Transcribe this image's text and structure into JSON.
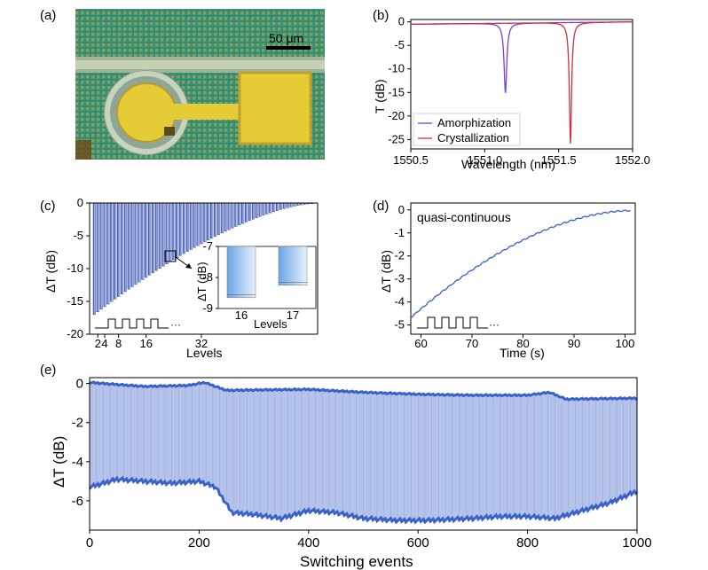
{
  "panels": {
    "a": "(a)",
    "b": "(b)",
    "c": "(c)",
    "d": "(d)",
    "e": "(e)"
  },
  "micrograph": {
    "scale_bar_label": "50 μm",
    "colors": {
      "background": "#2f9a86",
      "gold": "#e9d23a",
      "waveguide": "#b9c9a0"
    }
  },
  "chart_data": [
    {
      "panel": "b",
      "type": "line",
      "xlabel": "Wavelength (nm)",
      "ylabel": "T (dB)",
      "xlim": [
        1550.5,
        1552.0
      ],
      "ylim": [
        -27,
        0.5
      ],
      "xticks": [
        "1550.5",
        "1551.0",
        "1551.5",
        "1552.0"
      ],
      "yticks": [
        "0",
        "-5",
        "-10",
        "-15",
        "-20",
        "-25"
      ],
      "legend_position": "lower-left",
      "series": [
        {
          "name": "Amorphization",
          "color": "#7b3fd4",
          "resonance_nm": 1551.14,
          "min_db": -15.3,
          "baseline_db": -0.5,
          "fwhm_nm": 0.022
        },
        {
          "name": "Crystallization",
          "color": "#c8323c",
          "resonance_nm": 1551.58,
          "min_db": -26.2,
          "baseline_db": -0.5,
          "fwhm_nm": 0.018
        }
      ]
    },
    {
      "panel": "c",
      "type": "bar",
      "xlabel": "Levels",
      "ylabel": "ΔT (dB)",
      "ylim": [
        -20,
        0
      ],
      "xticks": [
        "2",
        "4",
        "8",
        "16",
        "32"
      ],
      "yticks": [
        "0",
        "-5",
        "-10",
        "-15",
        "-20"
      ],
      "levels": 64,
      "first_level_db": -17.0,
      "last_level_db": -0.1,
      "color": "#2f49b8",
      "inset": {
        "xlabel": "Levels",
        "ylabel": "ΔT (dB)",
        "ylim": [
          -9,
          -7
        ],
        "yticks": [
          "-7",
          "-8",
          "-9"
        ],
        "categories": [
          "16",
          "17"
        ],
        "values": [
          -8.65,
          -8.25
        ]
      }
    },
    {
      "panel": "d",
      "type": "line",
      "annotation": "quasi-continuous",
      "xlabel": "Time (s)",
      "ylabel": "ΔT (dB)",
      "xlim": [
        58,
        102
      ],
      "ylim": [
        -5.4,
        0.3
      ],
      "xticks": [
        "60",
        "70",
        "80",
        "90",
        "100"
      ],
      "yticks": [
        "0",
        "-1",
        "-2",
        "-3",
        "-4",
        "-5"
      ],
      "color": "#3a62c9",
      "start": {
        "x": 58,
        "y": -4.7
      },
      "end": {
        "x": 101,
        "y": -0.05
      }
    },
    {
      "panel": "e",
      "type": "scatter",
      "xlabel": "Switching events",
      "ylabel": "ΔT (dB)",
      "xlim": [
        0,
        1000
      ],
      "ylim": [
        -7.5,
        0.3
      ],
      "xticks": [
        "0",
        "200",
        "400",
        "600",
        "800",
        "1000"
      ],
      "yticks": [
        "0",
        "-2",
        "-4",
        "-6"
      ],
      "marker_color": "#3a62c9",
      "fill_color": "#a8b9e6",
      "upper": {
        "x": [
          0,
          100,
          180,
          210,
          250,
          400,
          500,
          600,
          700,
          800,
          840,
          870,
          1000
        ],
        "y": [
          0.05,
          -0.15,
          -0.1,
          0.05,
          -0.35,
          -0.3,
          -0.45,
          -0.55,
          -0.6,
          -0.6,
          -0.45,
          -0.8,
          -0.75
        ]
      },
      "lower": {
        "x": [
          0,
          50,
          100,
          150,
          200,
          230,
          260,
          300,
          350,
          400,
          450,
          500,
          560,
          620,
          700,
          750,
          800,
          850,
          900,
          950,
          1000
        ],
        "y": [
          -5.3,
          -4.9,
          -5.0,
          -5.1,
          -5.0,
          -5.3,
          -6.6,
          -6.7,
          -6.9,
          -6.5,
          -6.6,
          -6.9,
          -7.0,
          -7.0,
          -6.9,
          -6.8,
          -6.8,
          -6.9,
          -6.5,
          -6.1,
          -5.5
        ]
      }
    }
  ]
}
